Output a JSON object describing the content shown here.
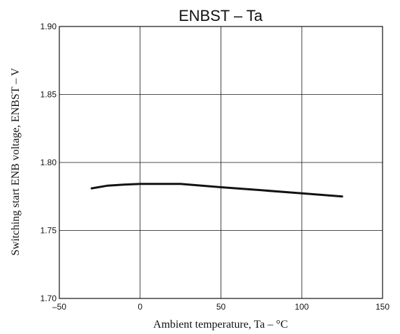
{
  "chart_data": {
    "type": "line",
    "title": "ENBST  –  Ta",
    "xlabel": "Ambient temperature,  Ta  –  °C",
    "ylabel": "Switching start ENB voltage, ENBST  –  V",
    "xlim": [
      -50,
      150
    ],
    "ylim": [
      1.7,
      1.9
    ],
    "x_ticks": [
      -50,
      0,
      50,
      100,
      150
    ],
    "x_tick_labels": [
      "–50",
      "0",
      "50",
      "100",
      "150"
    ],
    "y_ticks": [
      1.7,
      1.75,
      1.8,
      1.85,
      1.9
    ],
    "y_tick_labels": [
      "1.70",
      "1.75",
      "1.80",
      "1.85",
      "1.90"
    ],
    "grid": true,
    "series": [
      {
        "x": [
          -30,
          -20,
          -10,
          0,
          10,
          25,
          50,
          75,
          100,
          125
        ],
        "y": [
          1.781,
          1.783,
          1.7837,
          1.7842,
          1.7842,
          1.7842,
          1.7818,
          1.7796,
          1.7773,
          1.775
        ],
        "color": "#111111"
      }
    ]
  }
}
